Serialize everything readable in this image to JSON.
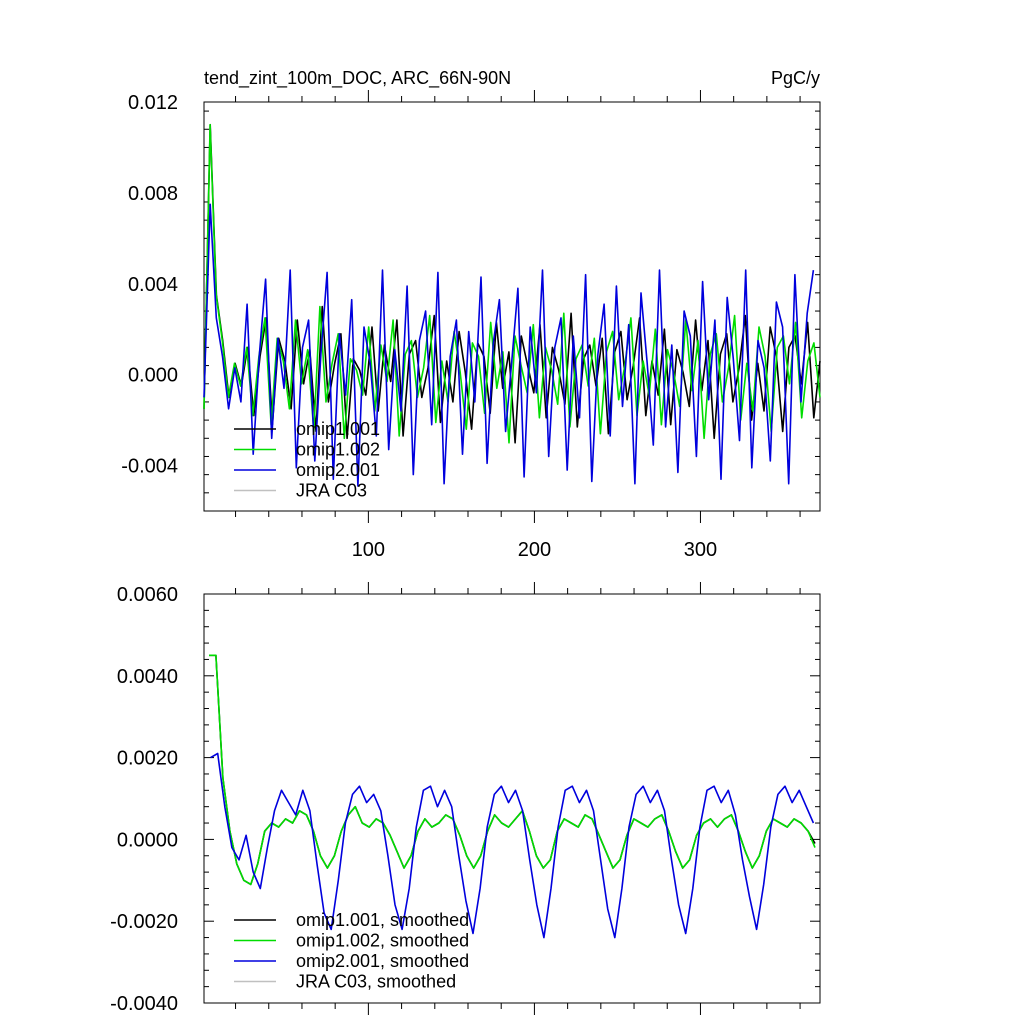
{
  "chart_data": [
    {
      "type": "line",
      "title": "tend_zint_100m_DOC, ARC_66N-90N",
      "units": "PgC/y",
      "xlim": [
        1,
        372
      ],
      "ylim": [
        -0.006,
        0.012
      ],
      "xticks": [
        100,
        200,
        300
      ],
      "xtick_labels": [
        "100",
        "200",
        "300"
      ],
      "yticks": [
        -0.004,
        0.0,
        0.004,
        0.008,
        0.012
      ],
      "ytick_labels": [
        "-0.004",
        "0.000",
        "0.004",
        "0.008",
        "0.012"
      ],
      "legend": {
        "placement": "bottom-left"
      },
      "series": [
        {
          "name": "omip1.001",
          "color": "#000000",
          "x_start": 1,
          "x_end": 372,
          "values": [
            -0.0015,
            0.011,
            0.0035,
            0.0015,
            -0.001,
            0.0005,
            -0.0005,
            0.0012,
            -0.0018,
            0.0008,
            0.0025,
            -0.0022,
            0.0016,
            0.0006,
            -0.0015,
            0.0024,
            -0.0004,
            0.0011,
            -0.0025,
            0.003,
            -0.0012,
            0.0005,
            0.0018,
            -0.0028,
            0.0007,
            0.0002,
            -0.0009,
            0.0021,
            -0.0016,
            0.0013,
            -0.0003,
            0.0024,
            -0.0027,
            0.0009,
            0.0015,
            -0.001,
            0.0003,
            0.0026,
            -0.0021,
            0.0006,
            -0.0012,
            0.0019,
            0.0001,
            -0.0024,
            0.0014,
            0.0008,
            -0.0017,
            0.0023,
            -0.0006,
            0.001,
            -0.003,
            0.0017,
            0.0004,
            -0.0008,
            0.0022,
            -0.0019,
            0.0012,
            0.0002,
            -0.0013,
            0.0027,
            -0.0023,
            0.0007,
            0.0013,
            -0.0005,
            0.0016,
            -0.0026,
            0.001,
            0.0019,
            -0.0011,
            0.0004,
            0.0025,
            -0.0018,
            0.0006,
            -0.0009,
            0.002,
            -0.0022,
            0.0011,
            0.0001,
            -0.0014,
            0.0024,
            -0.0007,
            0.0015,
            -0.0028,
            0.0009,
            0.0018,
            -0.0012,
            0.0003,
            0.0026,
            -0.002,
            0.0005,
            -0.0016,
            0.0021,
            0.0008,
            -0.0025,
            0.0012,
            0.0017,
            -0.0004,
            0.0023,
            -0.0019,
            0.0006
          ]
        },
        {
          "name": "omip1.002",
          "color": "#00dd00",
          "x_start": 1,
          "x_end": 372,
          "values": [
            -0.0015,
            0.011,
            0.0035,
            0.0015,
            -0.001,
            0.0005,
            -0.0005,
            0.0012,
            -0.0018,
            0.0008,
            0.0025,
            -0.0022,
            0.0016,
            0.0006,
            -0.0015,
            0.0024,
            -0.0004,
            0.0011,
            -0.0025,
            0.003,
            -0.0012,
            0.0005,
            0.0018,
            -0.0028,
            0.0007,
            0.0002,
            -0.0009,
            0.0021,
            -0.0016,
            0.0013,
            -0.0003,
            0.0024,
            -0.0027,
            0.0009,
            0.0015,
            -0.001,
            0.0003,
            0.0026,
            -0.0021,
            0.0006,
            -0.0012,
            0.0019,
            0.0001,
            -0.0024,
            0.0014,
            0.0008,
            -0.0017,
            0.0023,
            -0.0006,
            0.001,
            -0.003,
            0.0017,
            0.0004,
            -0.0008,
            0.0022,
            -0.0019,
            0.0012,
            0.0002,
            -0.0013,
            0.0027,
            -0.0023,
            0.0007,
            0.0013,
            -0.0005,
            0.0016,
            -0.0026,
            0.001,
            0.0019,
            -0.0011,
            0.0004,
            0.0025,
            -0.0018,
            0.0006,
            -0.0009,
            0.002,
            -0.0022,
            0.0011,
            0.0001,
            -0.0014,
            0.0024,
            -0.0007,
            0.0015,
            -0.0028,
            0.0009,
            0.0018,
            -0.0012,
            0.0003,
            0.0026,
            -0.002,
            0.0005,
            -0.0016,
            0.0021,
            0.0008,
            -0.0025,
            0.0012,
            0.0017,
            -0.0004,
            0.0023,
            -0.0019,
            0.0006,
            0.0014,
            -0.001
          ]
        },
        {
          "name": "omip2.001",
          "color": "#0000dd",
          "x_start": 1,
          "x_end": 368,
          "values": [
            -0.001,
            0.0075,
            0.0025,
            0.0008,
            -0.0015,
            0.0003,
            -0.0012,
            0.0031,
            -0.0035,
            0.0009,
            0.0042,
            -0.0028,
            0.0016,
            -0.0006,
            0.0046,
            -0.0041,
            0.0012,
            0.0024,
            -0.0038,
            0.0009,
            0.0045,
            -0.0046,
            0.0018,
            -0.0009,
            0.0033,
            -0.0049,
            0.0021,
            0.0005,
            -0.0027,
            0.0046,
            -0.0033,
            0.0011,
            -0.0016,
            0.0039,
            -0.0044,
            0.0015,
            0.0028,
            -0.0022,
            0.0045,
            -0.0048,
            0.0008,
            0.0024,
            -0.0035,
            0.0019,
            -0.0012,
            0.0043,
            -0.0039,
            0.0014,
            0.0033,
            -0.0025,
            0.0006,
            0.0038,
            -0.0045,
            0.0021,
            -0.0008,
            0.0046,
            -0.0036,
            0.0012,
            0.0025,
            -0.0042,
            0.0017,
            -0.0019,
            0.0044,
            -0.0047,
            0.0009,
            0.0031,
            -0.0027,
            0.0039,
            -0.0014,
            0.0022,
            -0.0048,
            0.0036,
            0.0005,
            -0.0031,
            0.0046,
            -0.0023,
            0.0013,
            -0.0043,
            0.0028,
            0.0017,
            -0.0036,
            0.0041,
            -0.0011,
            0.0024,
            -0.0046,
            0.0034,
            0.0007,
            -0.0029,
            0.0046,
            -0.0041,
            0.0015,
            0.0003,
            -0.0038,
            0.0032,
            0.0021,
            -0.0048,
            0.0044,
            -0.0012,
            0.0027,
            0.0046
          ]
        },
        {
          "name": "JRA C03",
          "color": "#c0c0c0",
          "x_start": 1,
          "x_end": 372,
          "values": []
        }
      ]
    },
    {
      "type": "line",
      "xlim": [
        1,
        372
      ],
      "ylim": [
        -0.004,
        0.006
      ],
      "xticks": [
        100,
        200,
        300
      ],
      "xtick_labels": [
        "",
        "",
        ""
      ],
      "yticks": [
        -0.004,
        -0.002,
        0.0,
        0.002,
        0.004,
        0.006
      ],
      "ytick_labels": [
        "-0.0040",
        "-0.0020",
        "0.0000",
        "0.0020",
        "0.0040",
        "0.0060"
      ],
      "legend": {
        "placement": "bottom-left"
      },
      "series": [
        {
          "name": "omip1.001, smoothed",
          "color": "#000000",
          "x_start": 4,
          "x_end": 369,
          "values": [
            0.0045,
            0.0045,
            0.0015,
            0.0002,
            -0.0006,
            -0.001,
            -0.0011,
            -0.0006,
            0.0002,
            0.0004,
            0.0003,
            0.0005,
            0.0004,
            0.0007,
            0.0006,
            0.0002,
            -0.0004,
            -0.0007,
            -0.0004,
            0.0002,
            0.0006,
            0.0008,
            0.0004,
            0.0003,
            0.0005,
            0.0004,
            0.0001,
            -0.0003,
            -0.0007,
            -0.0004,
            0.0002,
            0.0005,
            0.0003,
            0.0004,
            0.0006,
            0.0005,
            0.0001,
            -0.0004,
            -0.0007,
            -0.0004,
            0.0002,
            0.0006,
            0.0004,
            0.0003,
            0.0005,
            0.0007,
            0.0002,
            -0.0004,
            -0.0007,
            -0.0005,
            0.0002,
            0.0005,
            0.0004,
            0.0003,
            0.0006,
            0.0005,
            0.0001,
            -0.0003,
            -0.0007,
            -0.0005,
            0.0001,
            0.0005,
            0.0004,
            0.0003,
            0.0005,
            0.0006,
            0.0002,
            -0.0003,
            -0.0007,
            -0.0005,
            0.0001,
            0.0004,
            0.0005,
            0.0003,
            0.0005,
            0.0006,
            0.0002,
            -0.0003,
            -0.0007,
            -0.0004,
            0.0002,
            0.0005,
            0.0004,
            0.0003,
            0.0005,
            0.0004,
            0.0002,
            -0.0001
          ]
        },
        {
          "name": "omip1.002, smoothed",
          "color": "#00dd00",
          "x_start": 4,
          "x_end": 369,
          "values": [
            0.0045,
            0.0045,
            0.0015,
            0.0002,
            -0.0006,
            -0.001,
            -0.0011,
            -0.0006,
            0.0002,
            0.0004,
            0.0003,
            0.0005,
            0.0004,
            0.0007,
            0.0006,
            0.0002,
            -0.0004,
            -0.0007,
            -0.0004,
            0.0002,
            0.0006,
            0.0008,
            0.0004,
            0.0003,
            0.0005,
            0.0004,
            0.0001,
            -0.0003,
            -0.0007,
            -0.0004,
            0.0002,
            0.0005,
            0.0003,
            0.0004,
            0.0006,
            0.0005,
            0.0001,
            -0.0004,
            -0.0007,
            -0.0004,
            0.0002,
            0.0006,
            0.0004,
            0.0003,
            0.0005,
            0.0007,
            0.0002,
            -0.0004,
            -0.0007,
            -0.0005,
            0.0002,
            0.0005,
            0.0004,
            0.0003,
            0.0006,
            0.0005,
            0.0001,
            -0.0003,
            -0.0007,
            -0.0005,
            0.0001,
            0.0005,
            0.0004,
            0.0003,
            0.0005,
            0.0006,
            0.0002,
            -0.0003,
            -0.0007,
            -0.0005,
            0.0001,
            0.0004,
            0.0005,
            0.0003,
            0.0005,
            0.0006,
            0.0002,
            -0.0003,
            -0.0007,
            -0.0004,
            0.0002,
            0.0005,
            0.0004,
            0.0003,
            0.0005,
            0.0004,
            0.0002,
            -0.0002
          ]
        },
        {
          "name": "omip2.001, smoothed",
          "color": "#0000dd",
          "x_start": 5,
          "x_end": 368,
          "values": [
            0.002,
            0.0021,
            0.0008,
            -0.0002,
            -0.0005,
            0.0001,
            -0.0008,
            -0.0012,
            -0.0002,
            0.0007,
            0.0012,
            0.0009,
            0.0006,
            0.0012,
            0.0007,
            -0.0006,
            -0.0018,
            -0.0022,
            -0.001,
            0.0004,
            0.0011,
            0.0013,
            0.0009,
            0.0011,
            0.0007,
            -0.0004,
            -0.0016,
            -0.0022,
            -0.0012,
            0.0003,
            0.0012,
            0.0013,
            0.0008,
            0.0012,
            0.0008,
            -0.0004,
            -0.0015,
            -0.0023,
            -0.0012,
            0.0003,
            0.0011,
            0.0013,
            0.0009,
            0.0012,
            0.0007,
            -0.0005,
            -0.0016,
            -0.0024,
            -0.0012,
            0.0003,
            0.0012,
            0.0013,
            0.0009,
            0.0012,
            0.0007,
            -0.0005,
            -0.0017,
            -0.0024,
            -0.0012,
            0.0003,
            0.0011,
            0.0013,
            0.0009,
            0.0012,
            0.0007,
            -0.0005,
            -0.0016,
            -0.0023,
            -0.0012,
            0.0003,
            0.0012,
            0.0013,
            0.0009,
            0.0012,
            0.0006,
            -0.0005,
            -0.0014,
            -0.0022,
            -0.0011,
            0.0003,
            0.0011,
            0.0013,
            0.0009,
            0.0012,
            0.0008,
            0.0004
          ]
        },
        {
          "name": "JRA C03, smoothed",
          "color": "#c0c0c0",
          "x_start": 4,
          "x_end": 369,
          "values": []
        }
      ]
    }
  ]
}
